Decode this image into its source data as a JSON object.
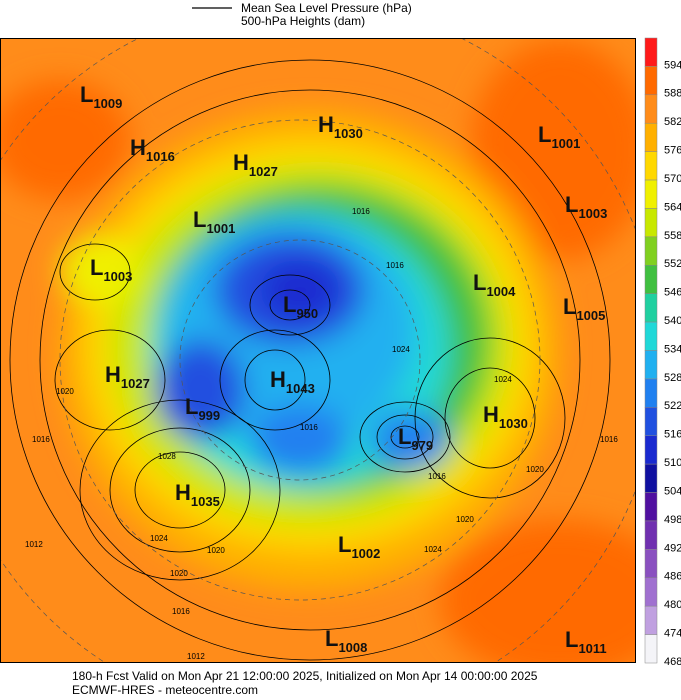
{
  "header": {
    "line_label": "Mean Sea Level Pressure (hPa)",
    "shade_label": "500-hPa Heights (dam)"
  },
  "colorbar": {
    "labels": [
      594,
      588,
      582,
      576,
      570,
      564,
      558,
      552,
      546,
      540,
      534,
      528,
      522,
      516,
      510,
      504,
      498,
      492,
      486,
      480,
      474,
      468
    ],
    "colors": [
      "#ff1a1a",
      "#ff6a00",
      "#ff8c1a",
      "#ffb000",
      "#ffd800",
      "#f0f000",
      "#c8e800",
      "#80d020",
      "#40c040",
      "#20d0a0",
      "#20d8d8",
      "#20b0f0",
      "#2080f0",
      "#2050e0",
      "#1a2ad0",
      "#1010a0",
      "#5010a0",
      "#7030b0",
      "#8a50c0",
      "#a070d0",
      "#c0a0e0",
      "#f4f4f8"
    ]
  },
  "centers": [
    {
      "letter": "L",
      "value": "1009"
    },
    {
      "letter": "H",
      "value": "1016"
    },
    {
      "letter": "H",
      "value": "1027"
    },
    {
      "letter": "H",
      "value": "1030"
    },
    {
      "letter": "L",
      "value": "1001"
    },
    {
      "letter": "L",
      "value": "1003"
    },
    {
      "letter": "L",
      "value": "1001"
    },
    {
      "letter": "L",
      "value": "1003"
    },
    {
      "letter": "L",
      "value": "950"
    },
    {
      "letter": "L",
      "value": "1004"
    },
    {
      "letter": "L",
      "value": "1005"
    },
    {
      "letter": "H",
      "value": "1027"
    },
    {
      "letter": "H",
      "value": "1043"
    },
    {
      "letter": "L",
      "value": "999"
    },
    {
      "letter": "H",
      "value": "1030"
    },
    {
      "letter": "L",
      "value": "979"
    },
    {
      "letter": "H",
      "value": "1035"
    },
    {
      "letter": "L",
      "value": "1002"
    },
    {
      "letter": "L",
      "value": "1008"
    },
    {
      "letter": "L",
      "value": "1011"
    }
  ],
  "isobar_labels": [
    "1016",
    "1016",
    "1024",
    "1024",
    "1016",
    "1020",
    "1024",
    "1016",
    "1020",
    "1020",
    "1016",
    "1028",
    "1024",
    "1020",
    "1020",
    "1012",
    "1016",
    "1012",
    "1016"
  ],
  "footer": {
    "valid": "180-h Fcst Valid on Mon Apr 21 12:00:00 2025, Initialized on Mon Apr 14 00:00:00 2025",
    "source": "ECMWF-HRES - meteocentre.com"
  }
}
